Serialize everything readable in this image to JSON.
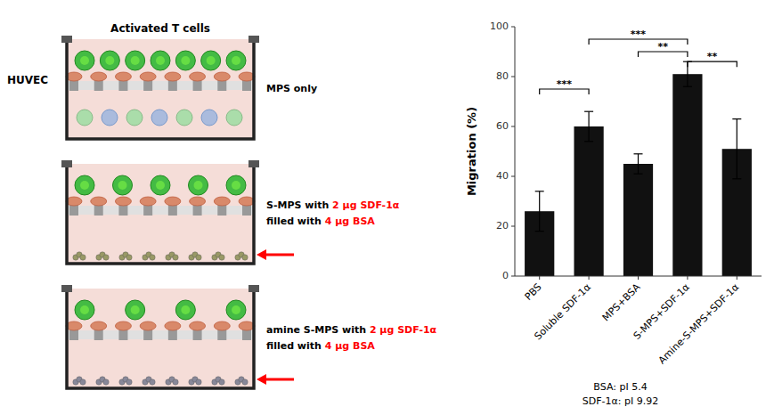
{
  "chart_data": {
    "type": "bar",
    "categories": [
      "PBS",
      "Soluble SDF-1α",
      "MPS+BSA",
      "S-MPS+SDF-1α",
      "Amine-S-MPS+SDF-1α"
    ],
    "values": [
      26,
      60,
      45,
      81,
      51
    ],
    "errors": [
      8,
      6,
      4,
      5,
      12
    ],
    "color": "#111111",
    "ylabel": "Migration (%)",
    "ylim": [
      0,
      100
    ],
    "yticks": [
      0,
      20,
      40,
      60,
      80,
      100
    ],
    "grid": false,
    "significance_bars": [
      {
        "from": 0,
        "to": 1,
        "y": 75,
        "label": "***"
      },
      {
        "from": 1,
        "to": 3,
        "y": 95,
        "label": "***"
      },
      {
        "from": 2,
        "to": 3,
        "y": 90,
        "label": "**"
      },
      {
        "from": 3,
        "to": 4,
        "y": 86,
        "label": "**"
      }
    ],
    "notes": [
      "BSA: pI 5.4",
      "SDF-1α: pI 9.92"
    ],
    "diagram": {
      "cell_label": "Activated T cells",
      "membrane_label": "HUVEC",
      "panels": [
        [
          [
            {
              "text": "MPS only"
            }
          ]
        ],
        [
          [
            {
              "text": "S-MPS with "
            },
            {
              "text": "2 μg SDF-1α",
              "color": "red"
            }
          ],
          [
            {
              "text": "filled with "
            },
            {
              "text": "4 μg BSA",
              "color": "red"
            }
          ]
        ],
        [
          [
            {
              "text": "amine S-MPS with "
            },
            {
              "text": "2 μg SDF-1α",
              "color": "red"
            }
          ],
          [
            {
              "text": "filled with "
            },
            {
              "text": "4 μg BSA",
              "color": "red"
            }
          ]
        ]
      ]
    }
  }
}
